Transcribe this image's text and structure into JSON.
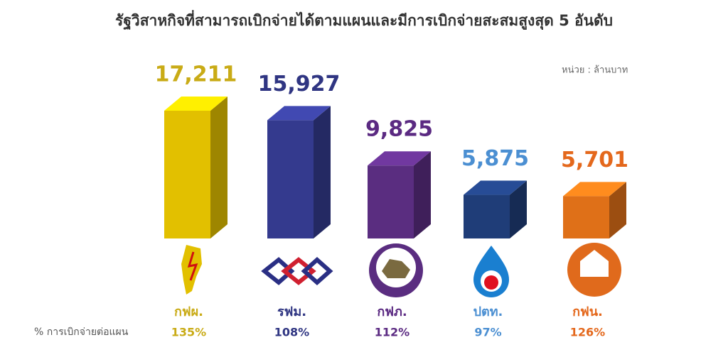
{
  "chart_data": {
    "type": "bar3d",
    "title": "รัฐวิสาหกิจที่สามารถเบิกจ่ายได้ตามแผนและมีการเบิกจ่ายสะสมสูงสุด 5 อันดับ",
    "unit_note": "หน่วย : ล้านบาท",
    "categories": [
      "กฟผ.",
      "รฟม.",
      "กฟภ.",
      "ปตท.",
      "กฟน."
    ],
    "values": [
      17211,
      15927,
      9825,
      5875,
      5701
    ],
    "value_labels": [
      "17,211",
      "15,927",
      "9,825",
      "5,875",
      "5,701"
    ],
    "colors": [
      "#e2c000",
      "#343a8e",
      "#5a2d80",
      "#1f3d78",
      "#df7018"
    ],
    "label_colors": [
      "#c9ab16",
      "#2f3582",
      "#5b2a82",
      "#4b8fd2",
      "#e4681c"
    ],
    "plan_ratio": {
      "label": "% การเบิกจ่ายต่อแผน",
      "values": [
        135,
        108,
        112,
        97,
        126
      ],
      "value_labels": [
        "135%",
        "108%",
        "112%",
        "97%",
        "126%"
      ]
    }
  }
}
